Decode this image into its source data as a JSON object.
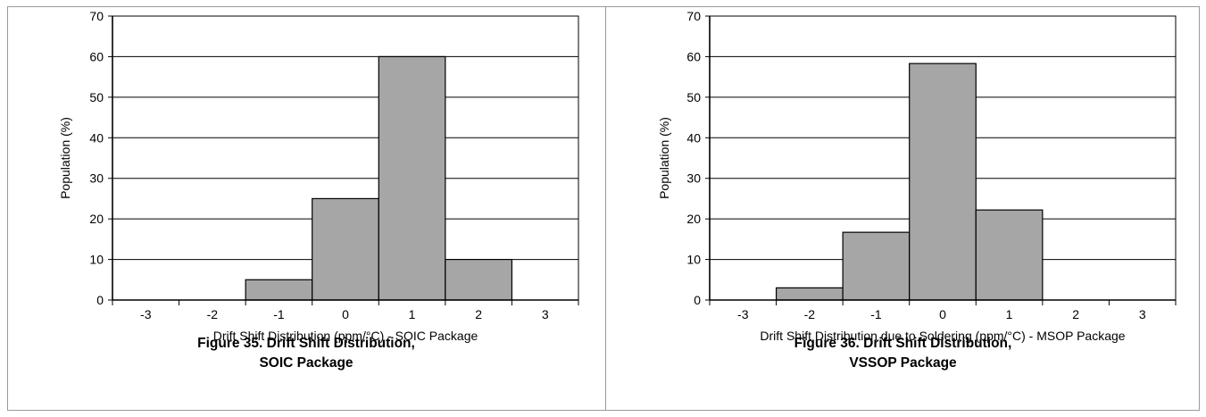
{
  "chart_data": [
    {
      "type": "bar",
      "categories": [
        "-3",
        "-2",
        "-1",
        "0",
        "1",
        "2",
        "3"
      ],
      "values": [
        0,
        0,
        5,
        25,
        60,
        10,
        0
      ],
      "title": "",
      "xlabel": "Drift Shift Distribution (ppm/°C) - SOIC Package",
      "ylabel": "Population (%)",
      "ylim": [
        0,
        70
      ],
      "yticks": [
        "0",
        "10",
        "20",
        "30",
        "40",
        "50",
        "60",
        "70"
      ],
      "grid": true,
      "bar_color": "#a6a6a6",
      "caption_line1": "Figure 35. Drift Shift Distribution,",
      "caption_line2": "SOIC Package"
    },
    {
      "type": "bar",
      "categories": [
        "-3",
        "-2",
        "-1",
        "0",
        "1",
        "2",
        "3"
      ],
      "values": [
        0,
        3,
        16.7,
        58.3,
        22.2,
        0,
        0
      ],
      "title": "",
      "xlabel": "Drift Shift Distribution due to Soldering (ppm/°C) - MSOP Package",
      "ylabel": "Population (%)",
      "ylim": [
        0,
        70
      ],
      "yticks": [
        "0",
        "10",
        "20",
        "30",
        "40",
        "50",
        "60",
        "70"
      ],
      "grid": true,
      "bar_color": "#a6a6a6",
      "caption_line1": "Figure 36. Drift Shift Distribution,",
      "caption_line2": "VSSOP Package"
    }
  ]
}
